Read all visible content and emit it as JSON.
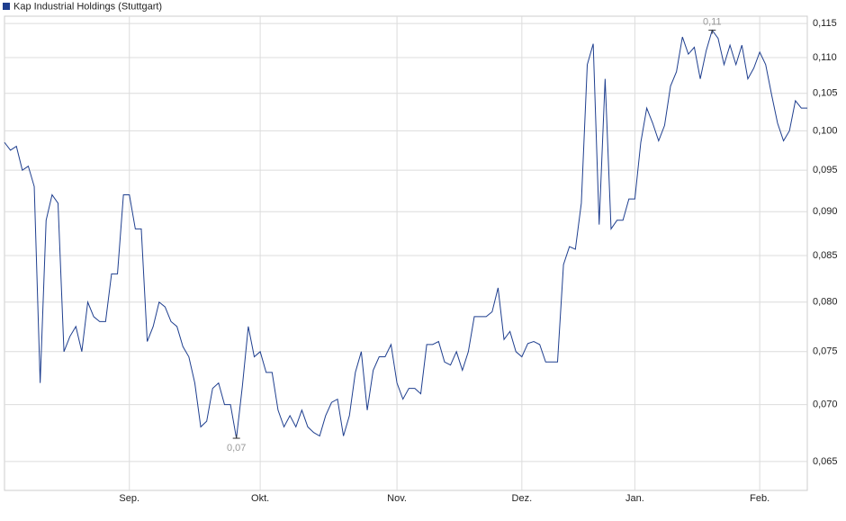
{
  "chart_data": {
    "type": "line",
    "categories": [
      null,
      null,
      null,
      null,
      null,
      null,
      null,
      null,
      null,
      null,
      null,
      null,
      null,
      null,
      null,
      null,
      null,
      null,
      null,
      null,
      null,
      "Sep.",
      null,
      null,
      null,
      null,
      null,
      null,
      null,
      null,
      null,
      null,
      null,
      null,
      null,
      null,
      null,
      null,
      null,
      null,
      null,
      null,
      null,
      "Okt.",
      null,
      null,
      null,
      null,
      null,
      null,
      null,
      null,
      null,
      null,
      null,
      null,
      null,
      null,
      null,
      null,
      null,
      null,
      null,
      null,
      null,
      null,
      "Nov.",
      null,
      null,
      null,
      null,
      null,
      null,
      null,
      null,
      null,
      null,
      null,
      null,
      null,
      null,
      null,
      null,
      null,
      null,
      null,
      null,
      "Dez.",
      null,
      null,
      null,
      null,
      null,
      null,
      null,
      null,
      null,
      null,
      null,
      null,
      null,
      null,
      null,
      null,
      null,
      null,
      "Jan.",
      null,
      null,
      null,
      null,
      null,
      null,
      null,
      null,
      null,
      null,
      null,
      null,
      null,
      null,
      null,
      null,
      null,
      null,
      null,
      null,
      "Feb.",
      null,
      null,
      null,
      null,
      null,
      null,
      null,
      null
    ],
    "series": [
      {
        "name": "Kap Industrial Holdings (Stuttgart)",
        "color": "#1f3f8f",
        "values": [
          0.0985,
          0.0975,
          0.098,
          0.095,
          0.0955,
          0.093,
          0.072,
          0.089,
          0.092,
          0.091,
          0.075,
          0.0765,
          0.0775,
          0.075,
          0.08,
          0.0785,
          0.078,
          0.078,
          0.083,
          0.083,
          0.092,
          0.092,
          0.088,
          0.088,
          0.076,
          0.0775,
          0.08,
          0.0795,
          0.078,
          0.0775,
          0.0755,
          0.0745,
          0.072,
          0.068,
          0.0685,
          0.0715,
          0.072,
          0.07,
          0.07,
          0.067,
          0.0717,
          0.0775,
          0.0745,
          0.075,
          0.073,
          0.073,
          0.0695,
          0.068,
          0.069,
          0.068,
          0.0695,
          0.068,
          0.0675,
          0.0672,
          0.069,
          0.0702,
          0.0705,
          0.0672,
          0.069,
          0.073,
          0.075,
          0.0695,
          0.0732,
          0.0745,
          0.0745,
          0.0757,
          0.072,
          0.0705,
          0.0715,
          0.0715,
          0.071,
          0.0757,
          0.0757,
          0.076,
          0.074,
          0.0737,
          0.075,
          0.0732,
          0.075,
          0.0785,
          0.0785,
          0.0785,
          0.079,
          0.0815,
          0.0762,
          0.077,
          0.075,
          0.0745,
          0.0758,
          0.076,
          0.0757,
          0.074,
          0.074,
          0.074,
          0.084,
          0.086,
          0.0857,
          0.091,
          0.109,
          0.112,
          0.0885,
          0.107,
          0.088,
          0.089,
          0.089,
          0.0915,
          0.0915,
          0.0985,
          0.103,
          0.101,
          0.0987,
          0.1007,
          0.106,
          0.108,
          0.113,
          0.1105,
          0.1115,
          0.107,
          0.111,
          0.114,
          0.1128,
          0.109,
          0.1118,
          0.109,
          0.1118,
          0.107,
          0.1085,
          0.1108,
          0.109,
          0.1048,
          0.101,
          0.0987,
          0.1,
          0.104,
          0.103,
          0.103
        ],
        "value_labels": [
          null,
          null,
          null,
          null,
          null,
          null,
          null,
          null,
          null,
          null,
          null,
          null,
          null,
          null,
          null,
          null,
          null,
          null,
          null,
          null,
          null,
          null,
          null,
          null,
          null,
          null,
          null,
          null,
          null,
          null,
          null,
          null,
          null,
          null,
          null,
          null,
          null,
          null,
          null,
          "0,07",
          null,
          null,
          null,
          null,
          null,
          null,
          null,
          null,
          null,
          null,
          null,
          null,
          null,
          null,
          null,
          null,
          null,
          null,
          null,
          null,
          null,
          null,
          null,
          null,
          null,
          null,
          null,
          null,
          null,
          null,
          null,
          null,
          null,
          null,
          null,
          null,
          null,
          null,
          null,
          null,
          null,
          null,
          null,
          null,
          null,
          null,
          null,
          null,
          null,
          null,
          null,
          null,
          null,
          null,
          null,
          null,
          null,
          null,
          null,
          null,
          null,
          null,
          null,
          null,
          null,
          null,
          null,
          null,
          null,
          null,
          null,
          null,
          null,
          null,
          null,
          null,
          null,
          null,
          null,
          "0,11",
          null,
          null,
          null,
          null,
          null,
          null,
          null,
          null,
          null,
          null,
          null,
          null,
          null,
          null,
          null,
          null
        ]
      }
    ],
    "ylim": [
      0.0626,
      0.1161
    ],
    "log_scale": true,
    "yticks": [
      {
        "value": 0.065,
        "label": "0,065"
      },
      {
        "value": 0.07,
        "label": "0,070"
      },
      {
        "value": 0.075,
        "label": "0,075"
      },
      {
        "value": 0.08,
        "label": "0,080"
      },
      {
        "value": 0.085,
        "label": "0,085"
      },
      {
        "value": 0.09,
        "label": "0,090"
      },
      {
        "value": 0.095,
        "label": "0,095"
      },
      {
        "value": 0.1,
        "label": "0,100"
      },
      {
        "value": 0.105,
        "label": "0,105"
      },
      {
        "value": 0.11,
        "label": "0,110"
      },
      {
        "value": 0.115,
        "label": "0,115"
      }
    ],
    "grid": true,
    "legend": "top-left"
  }
}
